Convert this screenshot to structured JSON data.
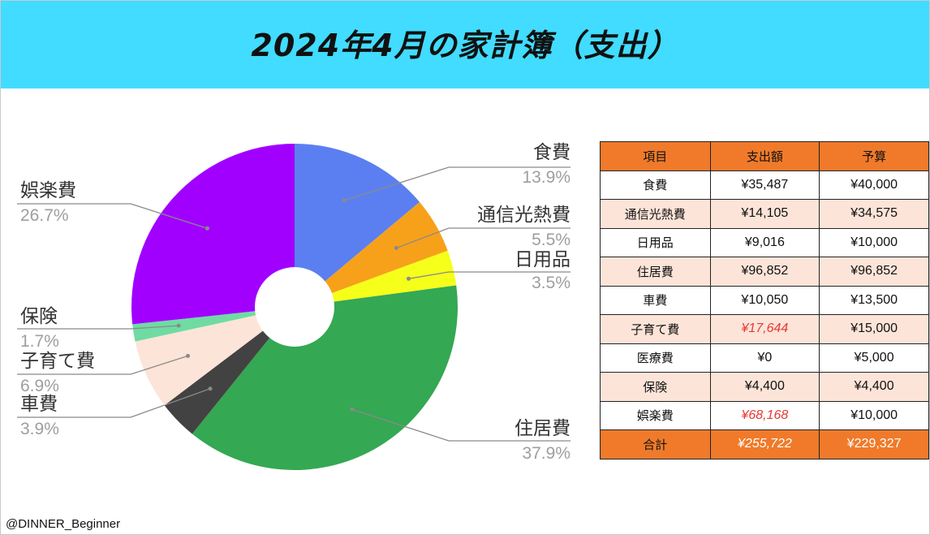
{
  "title": "2024年4月の家計簿（支出）",
  "credit": "@DINNER_Beginner",
  "chart_data": {
    "type": "pie",
    "donut": true,
    "title": "2024年4月の家計簿（支出）",
    "labels": [
      "食費",
      "通信光熱費",
      "日用品",
      "住居費",
      "車費",
      "子育て費",
      "保険",
      "娯楽費"
    ],
    "values": [
      13.9,
      5.5,
      3.5,
      37.9,
      3.9,
      6.9,
      1.7,
      26.7
    ],
    "value_labels": [
      "13.9%",
      "5.5%",
      "3.5%",
      "37.9%",
      "3.9%",
      "6.9%",
      "1.7%",
      "26.7%"
    ],
    "colors": [
      "#5b7ff0",
      "#f7a11a",
      "#f5ff1a",
      "#34a853",
      "#424242",
      "#fde4d8",
      "#6fdba3",
      "#a100ff"
    ],
    "legend": "none"
  },
  "table": {
    "headers": [
      "項目",
      "支出額",
      "予算"
    ],
    "rows": [
      {
        "item": "食費",
        "spent": "¥35,487",
        "budget": "¥40,000",
        "over": false
      },
      {
        "item": "通信光熱費",
        "spent": "¥14,105",
        "budget": "¥34,575",
        "over": false
      },
      {
        "item": "日用品",
        "spent": "¥9,016",
        "budget": "¥10,000",
        "over": false
      },
      {
        "item": "住居費",
        "spent": "¥96,852",
        "budget": "¥96,852",
        "over": false
      },
      {
        "item": "車費",
        "spent": "¥10,050",
        "budget": "¥13,500",
        "over": false
      },
      {
        "item": "子育て費",
        "spent": "¥17,644",
        "budget": "¥15,000",
        "over": true
      },
      {
        "item": "医療費",
        "spent": "¥0",
        "budget": "¥5,000",
        "over": false
      },
      {
        "item": "保険",
        "spent": "¥4,400",
        "budget": "¥4,400",
        "over": false
      },
      {
        "item": "娯楽費",
        "spent": "¥68,168",
        "budget": "¥10,000",
        "over": true
      }
    ],
    "total": {
      "item": "合計",
      "spent": "¥255,722",
      "budget": "¥229,327"
    }
  }
}
